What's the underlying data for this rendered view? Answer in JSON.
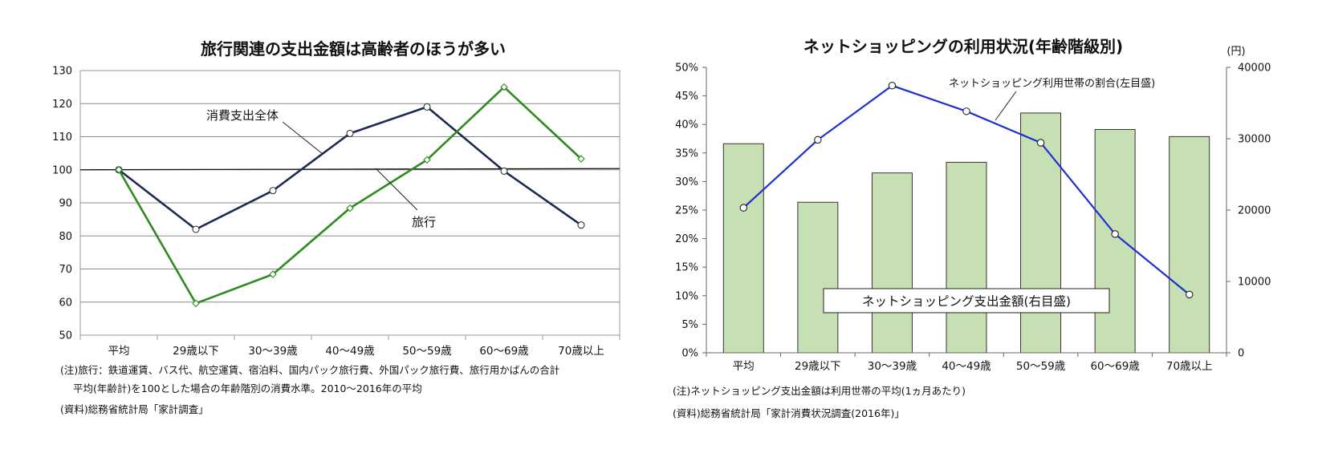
{
  "chart_data": [
    {
      "type": "line",
      "title": "旅行関連の支出金額は高齢者のほうが多い",
      "categories": [
        "平均",
        "29歳以下",
        "30～39歳",
        "40～49歳",
        "50～59歳",
        "60～69歳",
        "70歳以上"
      ],
      "ylim": [
        50,
        130
      ],
      "yticks": [
        "50",
        "60",
        "70",
        "80",
        "90",
        "100",
        "110",
        "120",
        "130"
      ],
      "grid": true,
      "series": [
        {
          "name": "消費支出全体",
          "color": "#1b2a52",
          "values": [
            100,
            82,
            93.7,
            111,
            119,
            99.6,
            83.3
          ]
        },
        {
          "name": "旅行",
          "color": "#2e8b1e",
          "values": [
            100,
            59.6,
            68.4,
            88.4,
            103,
            125,
            103.3
          ]
        }
      ],
      "notes": [
        "(注)旅行：鉄道運賃、バス代、航空運賃、宿泊料、国内パック旅行費、外国パック旅行費、旅行用かばんの合計",
        "平均(年齢計)を100とした場合の年齢階別の消費水準。2010～2016年の平均",
        "(資料)総務省統計局「家計調査」"
      ]
    },
    {
      "type": "bar+line",
      "title": "ネットショッピングの利用状況(年齢階級別)",
      "categories": [
        "平均",
        "29歳以下",
        "30～39歳",
        "40～49歳",
        "50～59歳",
        "60～69歳",
        "70歳以上"
      ],
      "y_left": {
        "lim": [
          0,
          50
        ],
        "ticks": [
          "0%",
          "5%",
          "10%",
          "15%",
          "20%",
          "25%",
          "30%",
          "35%",
          "40%",
          "45%",
          "50%"
        ]
      },
      "y_right": {
        "unit": "(円)",
        "lim": [
          0,
          40000
        ],
        "ticks": [
          "0",
          "10000",
          "20000",
          "30000",
          "40000"
        ]
      },
      "bars": {
        "name": "ネットショッピング支出金額(右目盛)",
        "color": "#c6e0b4",
        "axis": "right",
        "values": [
          29300,
          21100,
          25200,
          26700,
          33600,
          31300,
          30300
        ]
      },
      "line": {
        "name": "ネットショッピング利用世帯の割合(左目盛)",
        "color": "#1f2fd1",
        "axis": "left",
        "values": [
          25.4,
          37.3,
          46.8,
          42.3,
          36.8,
          20.8,
          10.2
        ]
      },
      "notes": [
        "(注)ネットショッピング支出金額は利用世帯の平均(1ヵ月あたり)",
        "(資料)総務省統計局「家計消費状況調査(2016年)」"
      ]
    }
  ]
}
